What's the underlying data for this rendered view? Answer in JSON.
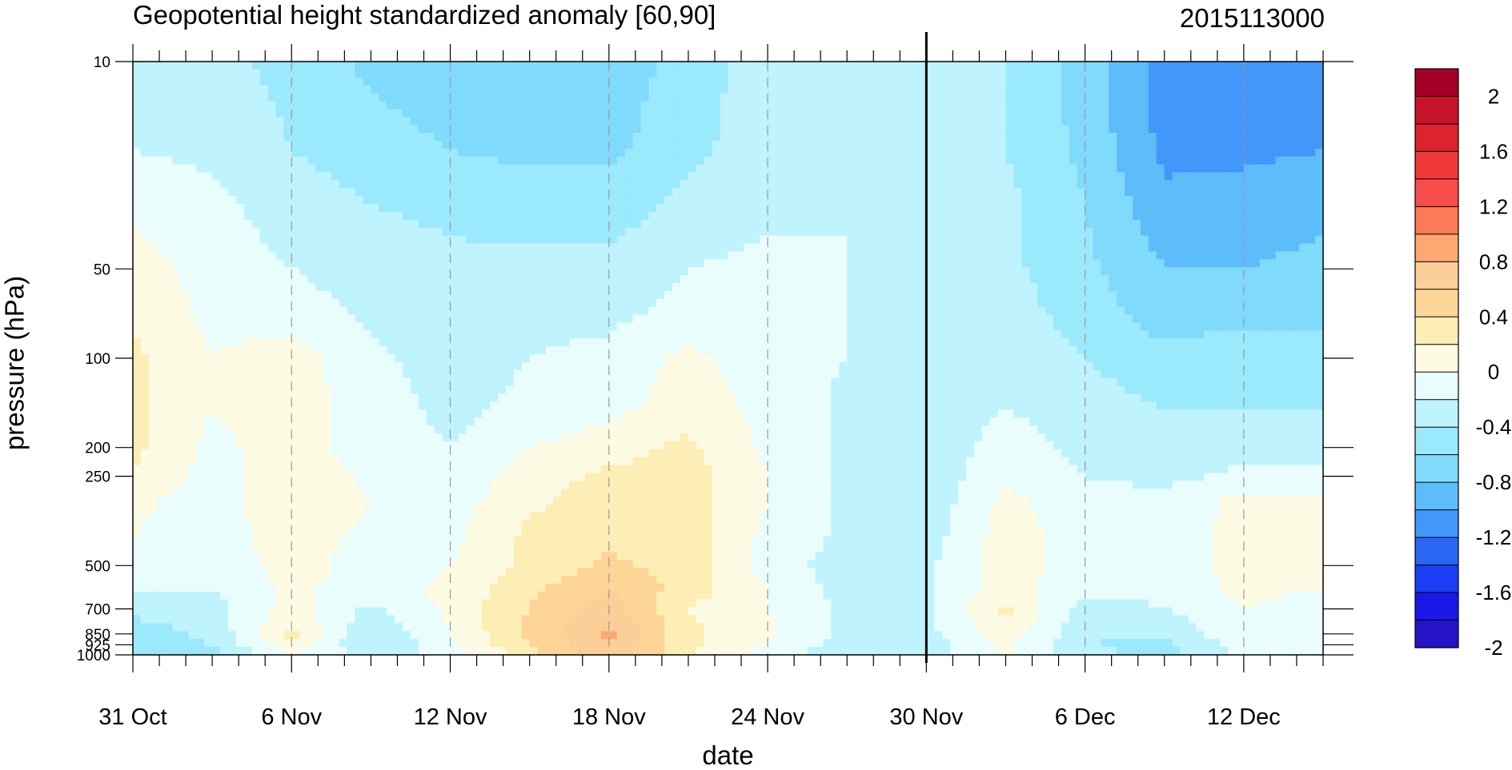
{
  "chart_data": {
    "type": "heatmap",
    "subtype": "filled-contour time-pressure cross-section",
    "title": "Geopotential height standardized anomaly [60,90]",
    "right_title": "2015113000",
    "xlabel": "date",
    "ylabel": "pressure (hPa)",
    "x_ticks": [
      {
        "day": 0,
        "label": "31 Oct"
      },
      {
        "day": 6,
        "label": "6 Nov"
      },
      {
        "day": 12,
        "label": "12 Nov"
      },
      {
        "day": 18,
        "label": "18 Nov"
      },
      {
        "day": 24,
        "label": "24 Nov"
      },
      {
        "day": 30,
        "label": "30 Nov"
      },
      {
        "day": 36,
        "label": "6 Dec"
      },
      {
        "day": 42,
        "label": "12 Dec"
      }
    ],
    "xlim_days": [
      0,
      45
    ],
    "x_reference": "31 Oct 2015",
    "vertical_marker_day": 30,
    "y_scale": "log",
    "y_reversed": true,
    "ylim": [
      1000,
      10
    ],
    "y_ticks": [
      {
        "value": 10,
        "label": "10"
      },
      {
        "value": 50,
        "label": "50"
      },
      {
        "value": 100,
        "label": "100"
      },
      {
        "value": 200,
        "label": "200"
      },
      {
        "value": 250,
        "label": "250"
      },
      {
        "value": 500,
        "label": "500"
      },
      {
        "value": 700,
        "label": "700"
      },
      {
        "value": 850,
        "label": "850"
      },
      {
        "value": 925,
        "label": "925"
      },
      {
        "value": 1000,
        "label": "1000"
      }
    ],
    "contour_levels": [
      -2.0,
      -1.8,
      -1.6,
      -1.4,
      -1.2,
      -1.0,
      -0.8,
      -0.6,
      -0.4,
      -0.2,
      0.0,
      0.2,
      0.4,
      0.6,
      0.8,
      1.0,
      1.2,
      1.4,
      1.6,
      1.8,
      2.0
    ],
    "colorbar_labels": [
      "2",
      "1.6",
      "1.2",
      "0.8",
      "0.4",
      "0",
      "-0.4",
      "-0.8",
      "-1.2",
      "-1.6",
      "-2"
    ],
    "colorbar_colors_top_to_bottom": [
      "#a50026",
      "#c8142a",
      "#dd232d",
      "#ef3838",
      "#f94d4a",
      "#fc7a56",
      "#fda872",
      "#fdcf98",
      "#fdd597",
      "#fdeeb5",
      "#fdfbe3",
      "#e9fdfd",
      "#bff3fd",
      "#9be9fc",
      "#7fdafb",
      "#5dbcfa",
      "#4297fa",
      "#2a67f5",
      "#1b3ff4",
      "#1a17e8",
      "#2514c8"
    ],
    "pressure_levels": [
      10,
      20,
      30,
      50,
      70,
      100,
      150,
      200,
      250,
      300,
      400,
      500,
      600,
      700,
      850,
      925,
      1000
    ],
    "days": [
      0,
      3,
      6,
      9,
      12,
      15,
      18,
      21,
      24,
      27,
      30,
      33,
      36,
      39,
      42,
      45
    ],
    "values": [
      [
        -0.55,
        -0.55,
        -0.65,
        -0.85,
        -0.95,
        -1.0,
        -0.95,
        -0.7,
        -0.5,
        -0.5,
        -0.5,
        -0.6,
        -0.9,
        -1.3,
        -1.3,
        -1.25
      ],
      [
        -0.4,
        -0.45,
        -0.6,
        -0.7,
        -0.8,
        -0.85,
        -0.85,
        -0.65,
        -0.5,
        -0.45,
        -0.5,
        -0.6,
        -0.85,
        -1.25,
        -1.25,
        -1.2
      ],
      [
        -0.25,
        -0.35,
        -0.5,
        -0.6,
        -0.65,
        -0.7,
        -0.7,
        -0.55,
        -0.45,
        -0.4,
        -0.45,
        -0.55,
        -0.8,
        -1.15,
        -1.1,
        -1.05
      ],
      [
        -0.1,
        -0.3,
        -0.4,
        -0.5,
        -0.55,
        -0.55,
        -0.55,
        -0.4,
        -0.35,
        -0.4,
        -0.45,
        -0.55,
        -0.75,
        -1.0,
        -1.0,
        -0.95
      ],
      [
        -0.05,
        -0.25,
        -0.3,
        -0.45,
        -0.5,
        -0.45,
        -0.45,
        -0.35,
        -0.35,
        -0.4,
        -0.45,
        -0.5,
        -0.7,
        -0.9,
        -0.85,
        -0.85
      ],
      [
        0.05,
        -0.2,
        -0.1,
        -0.35,
        -0.5,
        -0.4,
        -0.35,
        -0.15,
        -0.3,
        -0.4,
        -0.5,
        -0.45,
        -0.6,
        -0.75,
        -0.7,
        -0.7
      ],
      [
        0.05,
        -0.2,
        -0.1,
        -0.3,
        -0.45,
        -0.35,
        -0.25,
        -0.1,
        -0.25,
        -0.45,
        -0.55,
        -0.4,
        -0.5,
        -0.6,
        -0.6,
        -0.6
      ],
      [
        0.05,
        -0.25,
        -0.1,
        -0.3,
        -0.4,
        -0.2,
        -0.1,
        0.05,
        -0.25,
        -0.45,
        -0.55,
        -0.3,
        -0.45,
        -0.5,
        -0.5,
        -0.5
      ],
      [
        0.0,
        -0.3,
        -0.05,
        -0.25,
        -0.35,
        -0.1,
        0.05,
        0.1,
        -0.2,
        -0.45,
        -0.55,
        -0.25,
        -0.4,
        -0.45,
        -0.35,
        -0.35
      ],
      [
        -0.15,
        -0.3,
        -0.05,
        -0.2,
        -0.3,
        -0.05,
        0.1,
        0.1,
        -0.2,
        -0.45,
        -0.55,
        -0.15,
        -0.35,
        -0.35,
        -0.15,
        -0.2
      ],
      [
        -0.2,
        -0.3,
        -0.1,
        -0.25,
        -0.25,
        0.05,
        0.15,
        0.1,
        -0.25,
        -0.45,
        -0.5,
        -0.1,
        -0.3,
        -0.35,
        -0.1,
        -0.15
      ],
      [
        -0.25,
        -0.35,
        -0.1,
        -0.3,
        -0.2,
        0.05,
        0.25,
        0.1,
        -0.3,
        -0.5,
        -0.45,
        -0.1,
        -0.3,
        -0.35,
        -0.1,
        -0.15
      ],
      [
        -0.35,
        -0.4,
        -0.15,
        -0.3,
        -0.15,
        0.15,
        0.4,
        0.1,
        -0.2,
        -0.5,
        -0.45,
        -0.1,
        -0.35,
        -0.35,
        -0.15,
        -0.2
      ],
      [
        -0.55,
        -0.5,
        -0.1,
        -0.45,
        -0.15,
        0.2,
        0.5,
        0.0,
        -0.2,
        -0.45,
        -0.45,
        0.05,
        -0.5,
        -0.4,
        -0.2,
        -0.3
      ],
      [
        -0.7,
        -0.55,
        0.05,
        -0.6,
        -0.2,
        0.25,
        0.65,
        0.05,
        -0.15,
        -0.45,
        -0.45,
        -0.1,
        -0.55,
        -0.55,
        -0.25,
        -0.35
      ],
      [
        -0.75,
        -0.6,
        -0.05,
        -0.6,
        -0.25,
        0.2,
        0.6,
        0.05,
        -0.2,
        -0.5,
        -0.5,
        -0.15,
        -0.6,
        -0.65,
        -0.3,
        -0.35
      ],
      [
        -0.75,
        -0.65,
        -0.2,
        -0.5,
        -0.35,
        0.1,
        0.55,
        0.0,
        -0.3,
        -0.55,
        -0.5,
        -0.2,
        -0.55,
        -0.65,
        -0.35,
        -0.35
      ]
    ]
  }
}
